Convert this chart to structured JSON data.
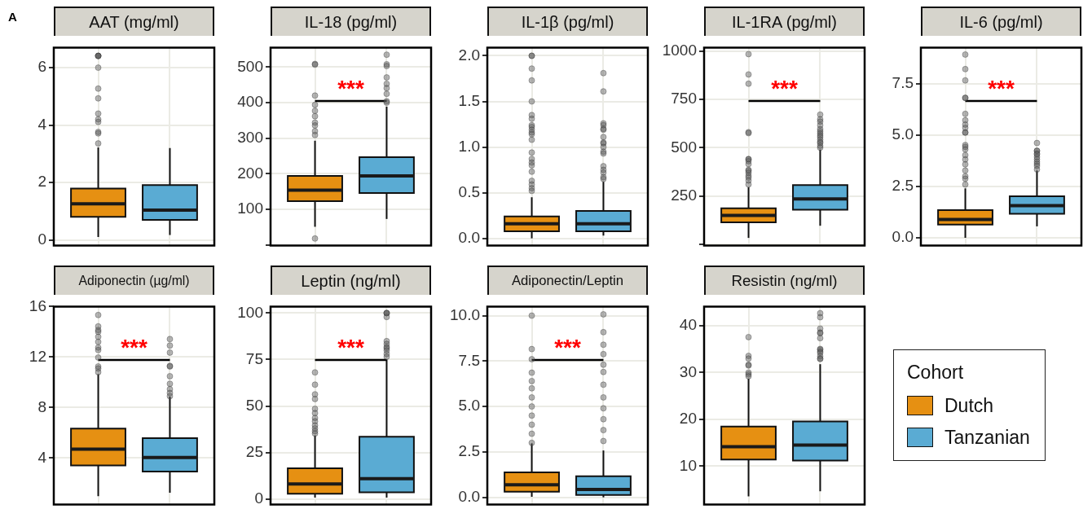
{
  "chart_data": [
    {
      "type": "box",
      "title": "AAT (mg/ml)",
      "categories": [
        null,
        null
      ],
      "ylim": [
        -0.2,
        6.7
      ],
      "yticks": [
        0,
        2,
        4,
        6
      ],
      "grid": true,
      "annotations": [
        "A"
      ],
      "series": [
        {
          "color": "#e69012",
          "boxes": [
            {
              "low": 0.1,
              "q1": 0.8,
              "median": 1.26,
              "q3": 1.79,
              "high": 3.22,
              "outliers": [
                6.41,
                6.41,
                6.41,
                6.41,
                6.0,
                5.27,
                4.93,
                4.4,
                4.2,
                4.11,
                3.76,
                3.71,
                3.36
              ]
            },
            null
          ]
        },
        {
          "color": "#5aabd3",
          "boxes": [
            null,
            {
              "low": 0.17,
              "q1": 0.7,
              "median": 1.04,
              "q3": 1.91,
              "high": 3.2
            }
          ]
        }
      ]
    },
    {
      "type": "box",
      "title": "IL-18 (pg/ml)",
      "categories": [
        null,
        null
      ],
      "ylim": [
        -2,
        555
      ],
      "yticks": [
        {
          "value": 0,
          "label": null
        },
        100,
        200,
        300,
        400,
        500
      ],
      "grid": true,
      "annotations": [
        "***"
      ],
      "series": [
        {
          "color": "#e69012",
          "boxes": [
            {
              "low": 51,
              "q1": 123,
              "median": 154,
              "q3": 194,
              "high": 293,
              "outliers": [
                509,
                507,
                420,
                394,
                377,
                362,
                344,
                336,
                320,
                309,
                18
              ]
            },
            null
          ]
        },
        {
          "color": "#5aabd3",
          "boxes": [
            null,
            {
              "low": 73,
              "q1": 146,
              "median": 194,
              "q3": 247,
              "high": 389,
              "outliers": [
                535,
                508,
                503,
                471,
                453,
                441,
                425,
                404,
                400
              ]
            }
          ]
        }
      ]
    },
    {
      "type": "box",
      "title": "IL-1β (pg/ml)",
      "categories": [
        null,
        null
      ],
      "ylim": [
        -0.08,
        2.09
      ],
      "yticks": [
        {
          "value": 0,
          "label": "0.0"
        },
        0.5,
        {
          "value": 1,
          "label": "1.0"
        },
        1.5,
        {
          "value": 2,
          "label": "2.0"
        }
      ],
      "grid": true,
      "series": [
        {
          "color": "#e69012",
          "boxes": [
            {
              "low": 0,
              "q1": 0.076,
              "median": 0.16,
              "q3": 0.24,
              "high": 0.45,
              "outliers": [
                2.0,
                2.0,
                1.86,
                1.73,
                1.5,
                1.35,
                1.31,
                1.24,
                1.22,
                1.19,
                1.16,
                1.14,
                1.08,
                0.94,
                0.87,
                0.83,
                0.8,
                0.73,
                0.63,
                0.59,
                0.55,
                0.52
              ]
            },
            null
          ]
        },
        {
          "color": "#5aabd3",
          "boxes": [
            null,
            {
              "low": 0.03,
              "q1": 0.076,
              "median": 0.16,
              "q3": 0.3,
              "high": 0.62,
              "outliers": [
                1.81,
                1.61,
                1.26,
                1.24,
                1.2,
                1.19,
                1.11,
                1.05,
                1.04,
                1.0,
                0.95,
                0.93,
                0.79,
                0.75,
                0.72,
                0.67,
                0.65
              ]
            }
          ]
        }
      ]
    },
    {
      "type": "box",
      "title": "IL-1RA (pg/ml)",
      "categories": [
        null,
        null
      ],
      "ylim": [
        -7,
        1018
      ],
      "yticks": [
        {
          "value": 0,
          "label": null
        },
        250,
        500,
        750,
        1000
      ],
      "grid": true,
      "annotations": [
        "***"
      ],
      "series": [
        {
          "color": "#e69012",
          "boxes": [
            {
              "low": 33,
              "q1": 114,
              "median": 149,
              "q3": 186,
              "high": 295,
              "outliers": [
                984,
                879,
                831,
                580,
                575,
                441,
                440,
                430,
                415,
                385,
                380,
                370,
                355,
                345,
                330,
                310
              ]
            },
            null
          ]
        },
        {
          "color": "#5aabd3",
          "boxes": [
            null,
            {
              "low": 96,
              "q1": 179,
              "median": 235,
              "q3": 306,
              "high": 490,
              "outliers": [
                671,
                647,
                635,
                616,
                596,
                585,
                574,
                564,
                555,
                542,
                530,
                524,
                510,
                500
              ]
            }
          ]
        }
      ]
    },
    {
      "type": "box",
      "title": "IL-6 (pg/ml)",
      "categories": [
        null,
        null
      ],
      "ylim": [
        -0.38,
        9.27
      ],
      "yticks": [
        {
          "value": 0,
          "label": "0.0"
        },
        2.5,
        {
          "value": 5,
          "label": "5.0"
        },
        7.5
      ],
      "grid": true,
      "annotations": [
        "***"
      ],
      "series": [
        {
          "color": "#e69012",
          "boxes": [
            {
              "low": 0,
              "q1": 0.65,
              "median": 0.89,
              "q3": 1.35,
              "high": 2.41,
              "outliers": [
                8.93,
                8.22,
                7.67,
                6.82,
                6.82,
                6.04,
                5.73,
                5.52,
                5.36,
                5.13,
                5.13,
                4.52,
                4.43,
                4.31,
                4.03,
                3.82,
                3.58,
                3.28,
                3.0,
                2.88,
                2.6
              ]
            },
            null
          ]
        },
        {
          "color": "#5aabd3",
          "boxes": [
            null,
            {
              "low": 0.56,
              "q1": 1.17,
              "median": 1.57,
              "q3": 2.02,
              "high": 3.28,
              "outliers": [
                4.62,
                4.24,
                4.24,
                4.11,
                4.06,
                3.94,
                3.82,
                3.7,
                3.6,
                3.5,
                3.33
              ]
            }
          ]
        }
      ]
    },
    {
      "type": "box",
      "title": "Adiponectin (µg/ml)",
      "categories": [
        null,
        null
      ],
      "ylim": [
        0.3,
        16
      ],
      "yticks": [
        4,
        8,
        12,
        16
      ],
      "grid": true,
      "annotations": [
        "***"
      ],
      "series": [
        {
          "color": "#e69012",
          "boxes": [
            {
              "low": 0.97,
              "q1": 3.41,
              "median": 4.69,
              "q3": 6.33,
              "high": 10.64,
              "outliers": [
                15.33,
                14.43,
                14.14,
                14.0,
                13.6,
                13.2,
                12.75,
                12.55,
                11.96,
                11.25,
                11.09,
                10.8
              ]
            },
            null
          ]
        },
        {
          "color": "#5aabd3",
          "boxes": [
            null,
            {
              "low": 1.24,
              "q1": 2.92,
              "median": 4.04,
              "q3": 5.56,
              "high": 8.87,
              "outliers": [
                13.42,
                12.91,
                12.35,
                11.3,
                11.25,
                10.48,
                9.88,
                9.45,
                9.15,
                8.9
              ]
            }
          ]
        }
      ]
    },
    {
      "type": "box",
      "title": "Leptin (ng/ml)",
      "categories": [
        null,
        null
      ],
      "ylim": [
        -3,
        103.5
      ],
      "yticks": [
        0,
        25,
        50,
        75,
        100
      ],
      "grid": true,
      "annotations": [
        "***"
      ],
      "series": [
        {
          "color": "#e69012",
          "boxes": [
            {
              "low": 0.8,
              "q1": 2.9,
              "median": 8.1,
              "q3": 16.5,
              "high": 34.2,
              "outliers": [
                68.1,
                61.5,
                56.3,
                53.8,
                48.5,
                46.2,
                43.6,
                41.8,
                39.6,
                38.0,
                36.5,
                35.2
              ]
            },
            null
          ]
        },
        {
          "color": "#5aabd3",
          "boxes": [
            null,
            {
              "low": 0.8,
              "q1": 3.6,
              "median": 10.9,
              "q3": 33.5,
              "high": 75.1,
              "outliers": [
                100,
                100,
                100,
                97.9,
                84.9,
                83.4,
                81.8,
                81.1,
                79.9,
                78.0,
                76.5
              ]
            }
          ]
        }
      ]
    },
    {
      "type": "box",
      "title": "Adiponectin/Leptin",
      "categories": [
        null,
        null
      ],
      "ylim": [
        -0.4,
        10.5
      ],
      "yticks": [
        {
          "value": 0,
          "label": "0.0"
        },
        2.5,
        {
          "value": 5,
          "label": "5.0"
        },
        7.5,
        {
          "value": 10,
          "label": "10.0"
        }
      ],
      "grid": true,
      "annotations": [
        "***"
      ],
      "series": [
        {
          "color": "#e69012",
          "boxes": [
            {
              "low": 0.03,
              "q1": 0.31,
              "median": 0.69,
              "q3": 1.38,
              "high": 2.97,
              "outliers": [
                10.0,
                8.16,
                7.6,
                6.86,
                6.4,
                6.0,
                5.5,
                5.0,
                4.5,
                4.0,
                3.5,
                3.0
              ]
            },
            null
          ]
        },
        {
          "color": "#5aabd3",
          "boxes": [
            null,
            {
              "low": 0,
              "q1": 0.13,
              "median": 0.43,
              "q3": 1.16,
              "high": 2.58,
              "outliers": [
                10.07,
                9.09,
                8.4,
                7.88,
                7.3,
                6.9,
                6.2,
                5.5,
                4.9,
                4.3,
                3.7,
                3.1
              ]
            }
          ]
        }
      ]
    },
    {
      "type": "box",
      "title": "Resistin (ng/ml)",
      "categories": [
        null,
        null
      ],
      "ylim": [
        1.8,
        44.1
      ],
      "yticks": [
        10,
        20,
        30,
        40
      ],
      "grid": true,
      "legend": "right",
      "legend_title": "Cohort",
      "series": [
        {
          "name": "Dutch",
          "color": "#e69012",
          "boxes": [
            {
              "low": 3.56,
              "q1": 11.42,
              "median": 14.17,
              "q3": 18.47,
              "high": 28.7,
              "outliers": [
                37.58,
                33.56,
                32.99,
                31.67,
                31.5,
                30.0,
                29.6,
                29.2
              ]
            },
            null
          ]
        },
        {
          "name": "Tanzanian",
          "color": "#5aabd3",
          "boxes": [
            null,
            {
              "low": 4.65,
              "q1": 11.19,
              "median": 14.52,
              "q3": 19.56,
              "high": 31.79,
              "outliers": [
                42.68,
                41.82,
                39.4,
                38.55,
                38.4,
                37.35,
                35.05,
                34.9,
                34.5,
                34.2,
                33.5,
                33.0,
                32.9
              ]
            }
          ]
        }
      ]
    }
  ]
}
